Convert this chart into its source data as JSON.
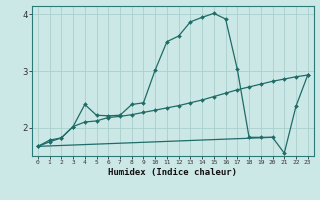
{
  "xlabel": "Humidex (Indice chaleur)",
  "xlim": [
    -0.5,
    23.5
  ],
  "ylim": [
    1.5,
    4.15
  ],
  "yticks": [
    2,
    3,
    4
  ],
  "xticks": [
    0,
    1,
    2,
    3,
    4,
    5,
    6,
    7,
    8,
    9,
    10,
    11,
    12,
    13,
    14,
    15,
    16,
    17,
    18,
    19,
    20,
    21,
    22,
    23
  ],
  "bg_color": "#cce8e6",
  "grid_color": "#aacfcd",
  "line_color": "#1e6b68",
  "curve1_x": [
    0,
    1,
    2,
    3,
    4,
    5,
    6,
    7,
    8,
    9,
    10,
    11,
    12,
    13,
    14,
    15,
    16,
    17,
    18,
    19,
    20,
    21,
    22,
    23
  ],
  "curve1_y": [
    1.67,
    1.78,
    1.82,
    2.02,
    2.41,
    2.22,
    2.21,
    2.22,
    2.41,
    2.44,
    3.02,
    3.52,
    3.62,
    3.87,
    3.95,
    4.02,
    3.92,
    3.03,
    1.83,
    1.83,
    1.83,
    1.55,
    2.38,
    2.93
  ],
  "curve2_x": [
    0,
    1,
    2,
    3,
    4,
    5,
    6,
    7,
    8,
    9,
    10,
    11,
    12,
    13,
    14,
    15,
    16,
    17,
    18,
    19,
    20,
    21,
    22,
    23
  ],
  "curve2_y": [
    1.67,
    1.75,
    1.82,
    2.02,
    2.1,
    2.12,
    2.18,
    2.2,
    2.23,
    2.27,
    2.31,
    2.35,
    2.39,
    2.44,
    2.49,
    2.55,
    2.61,
    2.67,
    2.72,
    2.77,
    2.82,
    2.86,
    2.9,
    2.93
  ],
  "curve3_x": [
    0,
    20
  ],
  "curve3_y": [
    1.67,
    1.83
  ]
}
